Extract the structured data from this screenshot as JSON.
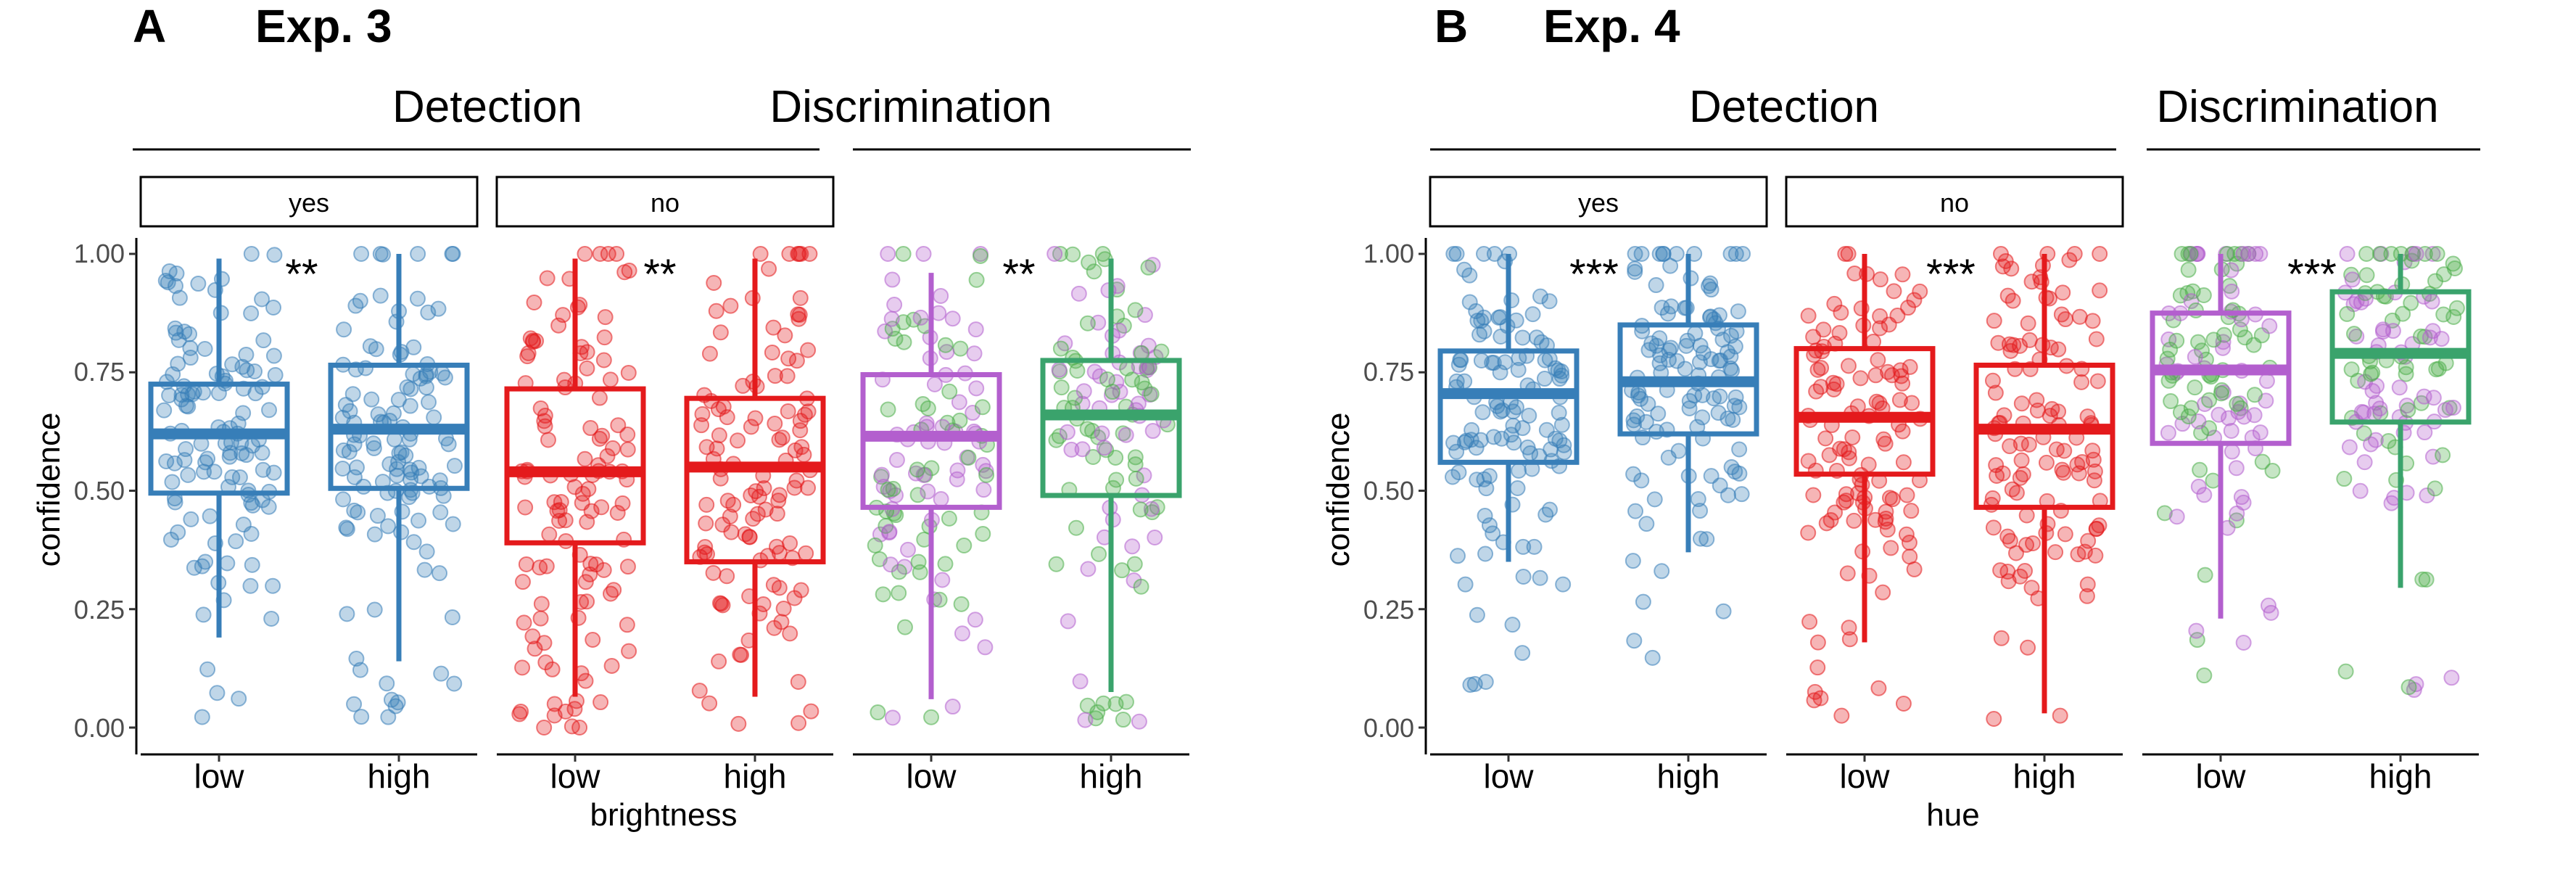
{
  "colors": {
    "yes": "#377eb8",
    "no": "#e41a1c",
    "disc_low_box": "#b35fce",
    "disc_high_box": "#3aa36c",
    "disc_point_a": "#4daf4a",
    "disc_point_b": "#b35fce"
  },
  "chart_data": [
    {
      "type": "boxplot",
      "panel_letter": "A",
      "title": "Exp. 3",
      "xlabel": "brightness",
      "ylabel": "confidence",
      "ylim": [
        0,
        1
      ],
      "yticks": [
        "0.00",
        "0.25",
        "0.50",
        "0.75",
        "1.00"
      ],
      "groups": [
        {
          "title": "Detection",
          "facets": [
            {
              "strip": "yes",
              "significance": "**",
              "boxes": [
                {
                  "x": "low",
                  "q1": 0.495,
                  "median": 0.62,
                  "q3": 0.725,
                  "whisker_low": 0.19,
                  "whisker_high": 0.99
                },
                {
                  "x": "high",
                  "q1": 0.505,
                  "median": 0.63,
                  "q3": 0.765,
                  "whisker_low": 0.14,
                  "whisker_high": 1.0
                }
              ]
            },
            {
              "strip": "no",
              "significance": "**",
              "boxes": [
                {
                  "x": "low",
                  "q1": 0.39,
                  "median": 0.54,
                  "q3": 0.715,
                  "whisker_low": 0.065,
                  "whisker_high": 0.99
                },
                {
                  "x": "high",
                  "q1": 0.35,
                  "median": 0.55,
                  "q3": 0.695,
                  "whisker_low": 0.065,
                  "whisker_high": 0.99
                }
              ]
            }
          ]
        },
        {
          "title": "Discrimination",
          "facets": [
            {
              "strip": "",
              "significance": "**",
              "boxes": [
                {
                  "x": "low",
                  "q1": 0.465,
                  "median": 0.615,
                  "q3": 0.745,
                  "whisker_low": 0.06,
                  "whisker_high": 0.96
                },
                {
                  "x": "high",
                  "q1": 0.49,
                  "median": 0.66,
                  "q3": 0.775,
                  "whisker_low": 0.075,
                  "whisker_high": 0.99
                }
              ]
            }
          ]
        }
      ]
    },
    {
      "type": "boxplot",
      "panel_letter": "B",
      "title": "Exp. 4",
      "xlabel": "hue",
      "ylabel": "confidence",
      "ylim": [
        0,
        1
      ],
      "yticks": [
        "0.00",
        "0.25",
        "0.50",
        "0.75",
        "1.00"
      ],
      "groups": [
        {
          "title": "Detection",
          "facets": [
            {
              "strip": "yes",
              "significance": "***",
              "boxes": [
                {
                  "x": "low",
                  "q1": 0.56,
                  "median": 0.705,
                  "q3": 0.795,
                  "whisker_low": 0.35,
                  "whisker_high": 1.0
                },
                {
                  "x": "high",
                  "q1": 0.62,
                  "median": 0.73,
                  "q3": 0.85,
                  "whisker_low": 0.37,
                  "whisker_high": 1.0
                }
              ]
            },
            {
              "strip": "no",
              "significance": "***",
              "boxes": [
                {
                  "x": "low",
                  "q1": 0.535,
                  "median": 0.655,
                  "q3": 0.8,
                  "whisker_low": 0.18,
                  "whisker_high": 1.0
                },
                {
                  "x": "high",
                  "q1": 0.465,
                  "median": 0.63,
                  "q3": 0.765,
                  "whisker_low": 0.03,
                  "whisker_high": 1.0
                }
              ]
            }
          ]
        },
        {
          "title": "Discrimination",
          "facets": [
            {
              "strip": "",
              "significance": "***",
              "boxes": [
                {
                  "x": "low",
                  "q1": 0.6,
                  "median": 0.755,
                  "q3": 0.875,
                  "whisker_low": 0.23,
                  "whisker_high": 1.0
                },
                {
                  "x": "high",
                  "q1": 0.645,
                  "median": 0.79,
                  "q3": 0.92,
                  "whisker_low": 0.295,
                  "whisker_high": 1.0
                }
              ]
            }
          ]
        }
      ]
    }
  ]
}
